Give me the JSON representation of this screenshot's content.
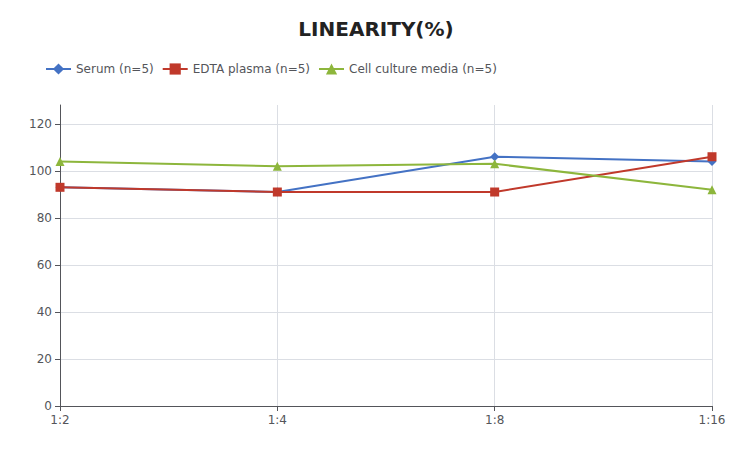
{
  "chart_data": {
    "type": "line",
    "title": "LINEARITY(%)",
    "categories": [
      "1:2",
      "1:4",
      "1:8",
      "1:16"
    ],
    "series": [
      {
        "name": "Serum (n=5)",
        "color": "#4472C4",
        "marker": "diamond",
        "values": [
          93,
          91,
          106,
          104
        ]
      },
      {
        "name": "EDTA plasma (n=5)",
        "color": "#C0392B",
        "marker": "square",
        "values": [
          93,
          91,
          91,
          106
        ]
      },
      {
        "name": "Cell culture media (n=5)",
        "color": "#8DB63C",
        "marker": "triangle",
        "values": [
          104,
          102,
          103,
          92
        ]
      }
    ],
    "ylim": [
      0,
      128
    ],
    "yticks": [
      0,
      20,
      40,
      60,
      80,
      100,
      120
    ],
    "grid": true,
    "legend": "upper left"
  }
}
